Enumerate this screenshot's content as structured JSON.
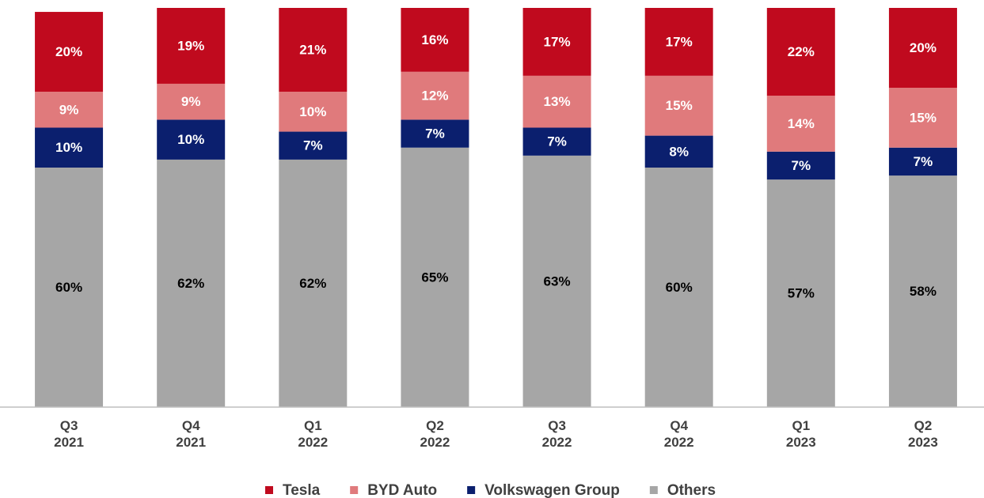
{
  "chart_data": {
    "type": "bar",
    "stacked": true,
    "categories": [
      "Q3\n2021",
      "Q4\n2021",
      "Q1\n2022",
      "Q2\n2022",
      "Q3\n2022",
      "Q4\n2022",
      "Q1\n2023",
      "Q2\n2023"
    ],
    "series": [
      {
        "name": "Tesla",
        "color": "#c00a1e",
        "label_color": "#ffffff",
        "values": [
          20,
          19,
          21,
          16,
          17,
          17,
          22,
          20
        ],
        "value_labels": [
          "20%",
          "19%",
          "21%",
          "16%",
          "17%",
          "17%",
          "22%",
          "20%"
        ]
      },
      {
        "name": "BYD Auto",
        "color": "#e07a7c",
        "label_color": "#ffffff",
        "values": [
          9,
          9,
          10,
          12,
          13,
          15,
          14,
          15
        ],
        "value_labels": [
          "9%",
          "9%",
          "10%",
          "12%",
          "13%",
          "15%",
          "14%",
          "15%"
        ]
      },
      {
        "name": "Volkswagen Group",
        "color": "#0b1f6e",
        "label_color": "#ffffff",
        "values": [
          10,
          10,
          7,
          7,
          7,
          8,
          7,
          7
        ],
        "value_labels": [
          "10%",
          "10%",
          "7%",
          "7%",
          "7%",
          "8%",
          "7%",
          "7%"
        ]
      },
      {
        "name": "Others",
        "color": "#a6a6a6",
        "label_color": "#000000",
        "values": [
          60,
          62,
          62,
          65,
          63,
          60,
          57,
          58
        ],
        "value_labels": [
          "60%",
          "62%",
          "62%",
          "65%",
          "63%",
          "60%",
          "57%",
          "58%"
        ]
      }
    ],
    "ylim": [
      0,
      100
    ],
    "legend": "bottom"
  }
}
